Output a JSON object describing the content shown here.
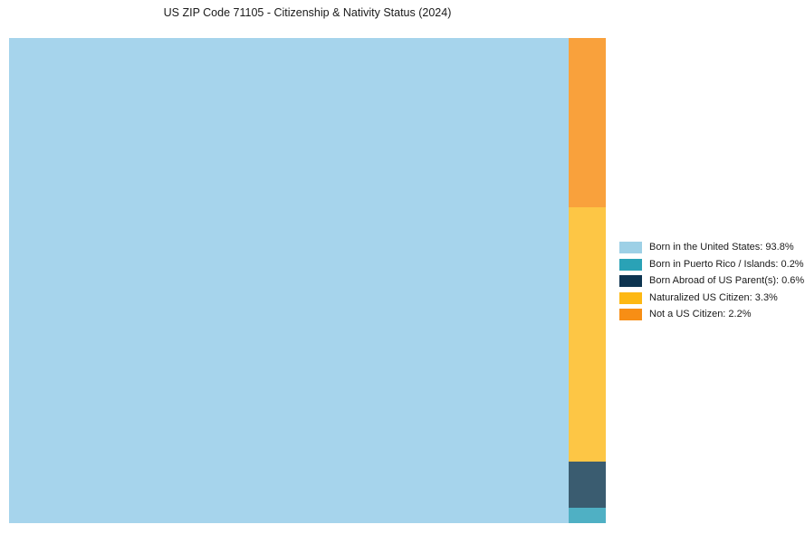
{
  "title": "US ZIP Code 71105 - Citizenship & Nativity Status (2024)",
  "colors": {
    "background": "#ffffff",
    "text": "#1a1a1a"
  },
  "chart_data": {
    "type": "treemap",
    "title": "US ZIP Code 71105 - Citizenship & Nativity Status (2024)",
    "unit": "%",
    "legend_position": "right",
    "layout_note": "largest slice fills left rectangle; remaining slices stacked in a narrow right column from bottom (index 1) to top (index 4)",
    "slices": [
      {
        "label": "Born in the United States",
        "value": 93.8,
        "legend_label": "Born in the United States: 93.8%",
        "legend_color": "#9dd0e6",
        "chart_color": "#a6d4ec"
      },
      {
        "label": "Born in Puerto Rico / Islands",
        "value": 0.2,
        "legend_label": "Born in Puerto Rico / Islands: 0.2%",
        "legend_color": "#2aa2b6",
        "chart_color": "#4fb0c4"
      },
      {
        "label": "Born Abroad of US Parent(s)",
        "value": 0.6,
        "legend_label": "Born Abroad of US Parent(s): 0.6%",
        "legend_color": "#0d3450",
        "chart_color": "#3a5c70"
      },
      {
        "label": "Naturalized US Citizen",
        "value": 3.3,
        "legend_label": "Naturalized US Citizen: 3.3%",
        "legend_color": "#fdb813",
        "chart_color": "#fdc645"
      },
      {
        "label": "Not a US Citizen",
        "value": 2.2,
        "legend_label": "Not a US Citizen: 2.2%",
        "legend_color": "#f78e15",
        "chart_color": "#f9a13c"
      }
    ]
  }
}
